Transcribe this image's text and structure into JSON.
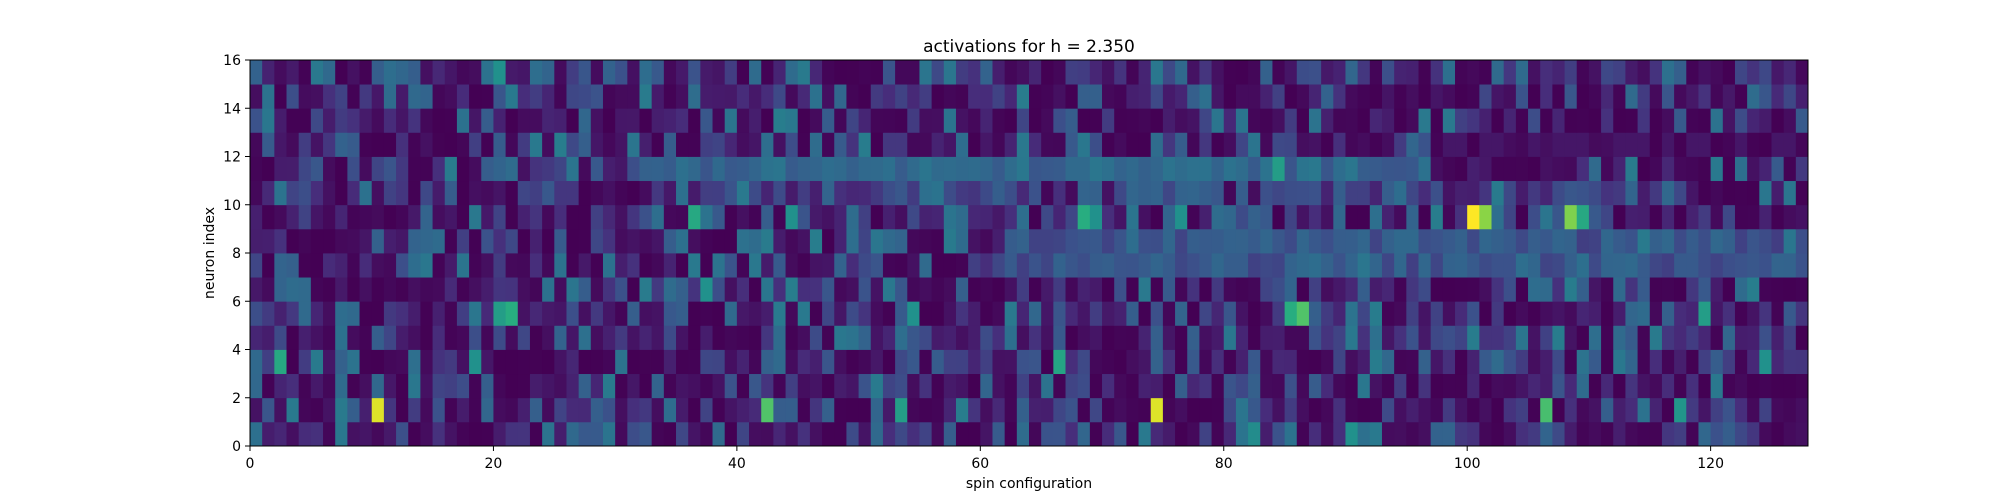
{
  "figure": {
    "title": "activations for h = 2.350"
  },
  "chart_data": {
    "type": "heatmap",
    "title": "activations for h = 2.350",
    "xlabel": "spin configuration",
    "ylabel": "neuron index",
    "xlim": [
      0,
      128
    ],
    "ylim": [
      0,
      16
    ],
    "x_ticks": [
      0,
      20,
      40,
      60,
      80,
      100,
      120
    ],
    "y_ticks": [
      0,
      2,
      4,
      6,
      8,
      10,
      12,
      14,
      16
    ],
    "x_tick_labels": [
      "0",
      "20",
      "40",
      "60",
      "80",
      "100",
      "120"
    ],
    "y_tick_labels": [
      "0",
      "2",
      "4",
      "6",
      "8",
      "10",
      "12",
      "14",
      "16"
    ],
    "n_columns": 128,
    "n_rows": 16,
    "colormap": [
      "#440154",
      "#472d7b",
      "#3b528b",
      "#2c728e",
      "#21918c",
      "#28ae80",
      "#5ec962",
      "#addc30",
      "#fde725"
    ],
    "background_color": "#440154",
    "grid": false,
    "highlights": [
      {
        "x": 100,
        "y": 9,
        "value": 1.0
      },
      {
        "x": 101,
        "y": 9,
        "value": 0.82
      },
      {
        "x": 108,
        "y": 9,
        "value": 0.8
      },
      {
        "x": 109,
        "y": 9,
        "value": 0.6
      },
      {
        "x": 68,
        "y": 9,
        "value": 0.62
      },
      {
        "x": 36,
        "y": 9,
        "value": 0.6
      },
      {
        "x": 69,
        "y": 9,
        "value": 0.5
      },
      {
        "x": 44,
        "y": 9,
        "value": 0.5
      },
      {
        "x": 76,
        "y": 9,
        "value": 0.5
      },
      {
        "x": 10,
        "y": 1,
        "value": 0.95
      },
      {
        "x": 74,
        "y": 1,
        "value": 0.95
      },
      {
        "x": 42,
        "y": 1,
        "value": 0.72
      },
      {
        "x": 106,
        "y": 1,
        "value": 0.7
      },
      {
        "x": 53,
        "y": 1,
        "value": 0.55
      },
      {
        "x": 117,
        "y": 1,
        "value": 0.52
      },
      {
        "x": 86,
        "y": 5,
        "value": 0.72
      },
      {
        "x": 85,
        "y": 5,
        "value": 0.62
      },
      {
        "x": 21,
        "y": 5,
        "value": 0.62
      },
      {
        "x": 20,
        "y": 5,
        "value": 0.55
      },
      {
        "x": 119,
        "y": 5,
        "value": 0.55
      },
      {
        "x": 54,
        "y": 5,
        "value": 0.5
      },
      {
        "x": 2,
        "y": 3,
        "value": 0.6
      },
      {
        "x": 66,
        "y": 3,
        "value": 0.58
      },
      {
        "x": 18,
        "y": 3,
        "value": 0.5
      },
      {
        "x": 124,
        "y": 3,
        "value": 0.5
      },
      {
        "x": 84,
        "y": 11,
        "value": 0.55
      },
      {
        "x": 20,
        "y": 15,
        "value": 0.5
      },
      {
        "x": 37,
        "y": 6,
        "value": 0.5
      },
      {
        "x": 90,
        "y": 0,
        "value": 0.5
      },
      {
        "x": 82,
        "y": 0,
        "value": 0.48
      }
    ]
  }
}
